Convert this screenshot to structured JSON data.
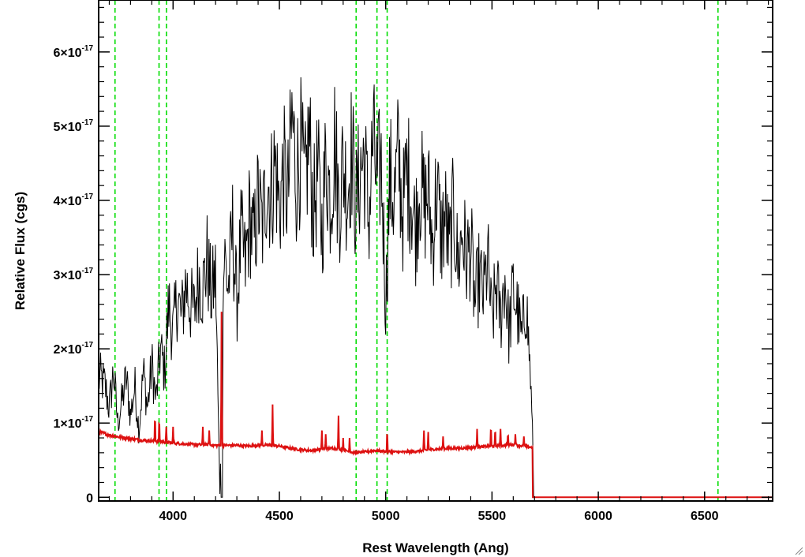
{
  "chart_data": {
    "type": "line",
    "xlabel": "Rest Wavelength (Ang)",
    "ylabel": "Relative Flux (cgs)",
    "xlim": [
      3650,
      6820
    ],
    "ylim": [
      -5e-19,
      6.7e-17
    ],
    "x_ticks": [
      4000,
      4500,
      5000,
      5500,
      6000,
      6500
    ],
    "x_tick_labels": [
      "4000",
      "4500",
      "5000",
      "5500",
      "6000",
      "6500"
    ],
    "y_ticks": [
      0,
      1e-17,
      2e-17,
      3e-17,
      4e-17,
      5e-17,
      6e-17
    ],
    "y_tick_labels": [
      {
        "mantissa": "0",
        "exponent": ""
      },
      {
        "mantissa": "1×10",
        "exponent": "-17"
      },
      {
        "mantissa": "2×10",
        "exponent": "-17"
      },
      {
        "mantissa": "3×10",
        "exponent": "-17"
      },
      {
        "mantissa": "4×10",
        "exponent": "-17"
      },
      {
        "mantissa": "5×10",
        "exponent": "-17"
      },
      {
        "mantissa": "6×10",
        "exponent": "-17"
      }
    ],
    "grid": false,
    "vertical_lines": {
      "color": "#00dd00",
      "style": "dashed",
      "x": [
        3727,
        3934,
        3969,
        4861,
        4959,
        5007,
        6563
      ]
    },
    "series": [
      {
        "color": "#000000",
        "x_step": 20,
        "x": [
          3660,
          3680,
          3700,
          3720,
          3740,
          3760,
          3780,
          3800,
          3820,
          3840,
          3860,
          3880,
          3900,
          3920,
          3940,
          3960,
          3980,
          4000,
          4020,
          4040,
          4060,
          4080,
          4100,
          4120,
          4140,
          4160,
          4180,
          4200,
          4220,
          4240,
          4260,
          4280,
          4300,
          4320,
          4340,
          4360,
          4380,
          4400,
          4420,
          4440,
          4460,
          4480,
          4500,
          4520,
          4540,
          4560,
          4580,
          4600,
          4620,
          4640,
          4660,
          4680,
          4700,
          4720,
          4740,
          4760,
          4780,
          4800,
          4820,
          4840,
          4860,
          4880,
          4900,
          4920,
          4940,
          4960,
          4980,
          5000,
          5020,
          5040,
          5060,
          5080,
          5100,
          5120,
          5140,
          5160,
          5180,
          5200,
          5220,
          5240,
          5260,
          5280,
          5300,
          5320,
          5340,
          5360,
          5380,
          5400,
          5420,
          5440,
          5460,
          5480,
          5500,
          5520,
          5540,
          5560,
          5580,
          5600,
          5620,
          5640,
          5660,
          5680,
          5700,
          5720,
          5760,
          5800,
          5900,
          6000,
          6100,
          6200,
          6300,
          6400,
          6500,
          6600,
          6700,
          6800
        ],
        "y": [
          1.6e-17,
          1.5e-17,
          1.2e-17,
          1.7e-17,
          1e-17,
          1.3e-17,
          1.6e-17,
          1.1e-17,
          1.5e-17,
          9e-18,
          1.7e-17,
          1.2e-17,
          1.8e-17,
          1.3e-17,
          2e-17,
          1.7e-17,
          2.6e-17,
          2.2e-17,
          2.7e-17,
          2.4e-17,
          2.9e-17,
          2.6e-17,
          2.5e-17,
          3e-17,
          2.8e-17,
          3.2e-17,
          2.7e-17,
          3e-17,
          5e-19,
          3.3e-17,
          2.8e-17,
          3.6e-17,
          2.6e-17,
          3.5e-17,
          3.1e-17,
          3.8e-17,
          3.4e-17,
          4e-17,
          3.6e-17,
          4.3e-17,
          4.1e-17,
          4.5e-17,
          3.9e-17,
          4.4e-17,
          4e-17,
          5.1e-17,
          4.3e-17,
          4.7e-17,
          4.1e-17,
          4.9e-17,
          3.8e-17,
          4.4e-17,
          3.6e-17,
          4.6e-17,
          4e-17,
          4.8e-17,
          3.9e-17,
          4.5e-17,
          4.1e-17,
          4.7e-17,
          3.9e-17,
          4.4e-17,
          4.6e-17,
          3.7e-17,
          4.8e-17,
          4.2e-17,
          4.5e-17,
          2.6e-17,
          4.3e-17,
          4e-17,
          4.6e-17,
          3.8e-17,
          4.4e-17,
          4.1e-17,
          3.6e-17,
          4.3e-17,
          3.9e-17,
          4.1e-17,
          3.4e-17,
          4.2e-17,
          3.5e-17,
          3.8e-17,
          3.3e-17,
          3.9e-17,
          3.1e-17,
          3.6e-17,
          3.2e-17,
          3.4e-17,
          2.6e-17,
          3e-17,
          2.7e-17,
          3.2e-17,
          2.3e-17,
          2.9e-17,
          2.4e-17,
          3e-17,
          2.2e-17,
          2.8e-17,
          2.5e-17,
          2.1e-17,
          2.7e-17,
          1.7e-17,
          0.0,
          0.0,
          0.0,
          0.0,
          0.0,
          0.0,
          0.0,
          0.0,
          0.0,
          0.0,
          0.0,
          0.0,
          0.0,
          0.0
        ],
        "noise_amplitude_fraction": 0.22
      },
      {
        "color": "#dd1111",
        "x": [
          3650,
          3700,
          3750,
          3800,
          3850,
          3900,
          3950,
          4000,
          4050,
          4100,
          4150,
          4200,
          4250,
          4300,
          4350,
          4400,
          4450,
          4500,
          4550,
          4600,
          4650,
          4700,
          4750,
          4800,
          4850,
          4900,
          4950,
          5000,
          5050,
          5100,
          5150,
          5200,
          5250,
          5300,
          5350,
          5400,
          5450,
          5500,
          5550,
          5600,
          5650,
          5690,
          5691,
          6820
        ],
        "y": [
          8.8e-18,
          8.4e-18,
          8.1e-18,
          7.9e-18,
          7.7e-18,
          7.6e-18,
          7.5e-18,
          7.3e-18,
          7.2e-18,
          7.1e-18,
          7.1e-18,
          7e-18,
          7e-18,
          7e-18,
          6.9e-18,
          7e-18,
          7e-18,
          6.9e-18,
          6.6e-18,
          6.4e-18,
          6.3e-18,
          6.5e-18,
          6.6e-18,
          6.4e-18,
          6e-18,
          6.1e-18,
          6.3e-18,
          6.2e-18,
          6.1e-18,
          6.1e-18,
          6.2e-18,
          6.4e-18,
          6.5e-18,
          6.6e-18,
          6.6e-18,
          6.7e-18,
          6.8e-18,
          6.9e-18,
          7e-18,
          7.1e-18,
          6.9e-18,
          6.7e-18,
          0.0,
          0.0
        ],
        "spikes": [
          {
            "x": 3915,
            "y": 1.15e-17
          },
          {
            "x": 3935,
            "y": 1.1e-17
          },
          {
            "x": 3968,
            "y": 9.5e-18
          },
          {
            "x": 4000,
            "y": 9.5e-18
          },
          {
            "x": 4140,
            "y": 9.5e-18
          },
          {
            "x": 4170,
            "y": 9e-18
          },
          {
            "x": 4228,
            "y": 2.5e-17
          },
          {
            "x": 4418,
            "y": 9e-18
          },
          {
            "x": 4468,
            "y": 1.25e-17
          },
          {
            "x": 4700,
            "y": 9e-18
          },
          {
            "x": 4718,
            "y": 8.5e-18
          },
          {
            "x": 4778,
            "y": 1.1e-17
          },
          {
            "x": 4800,
            "y": 8e-18
          },
          {
            "x": 4830,
            "y": 8e-18
          },
          {
            "x": 5007,
            "y": 9.5e-18
          },
          {
            "x": 5180,
            "y": 9e-18
          },
          {
            "x": 5200,
            "y": 8.8e-18
          },
          {
            "x": 5270,
            "y": 8.2e-18
          },
          {
            "x": 5430,
            "y": 9.2e-18
          },
          {
            "x": 5495,
            "y": 1e-17
          },
          {
            "x": 5515,
            "y": 9.5e-18
          },
          {
            "x": 5540,
            "y": 9.2e-18
          },
          {
            "x": 5575,
            "y": 8.8e-18
          },
          {
            "x": 5610,
            "y": 8.5e-18
          },
          {
            "x": 5650,
            "y": 8.2e-18
          }
        ]
      }
    ]
  }
}
